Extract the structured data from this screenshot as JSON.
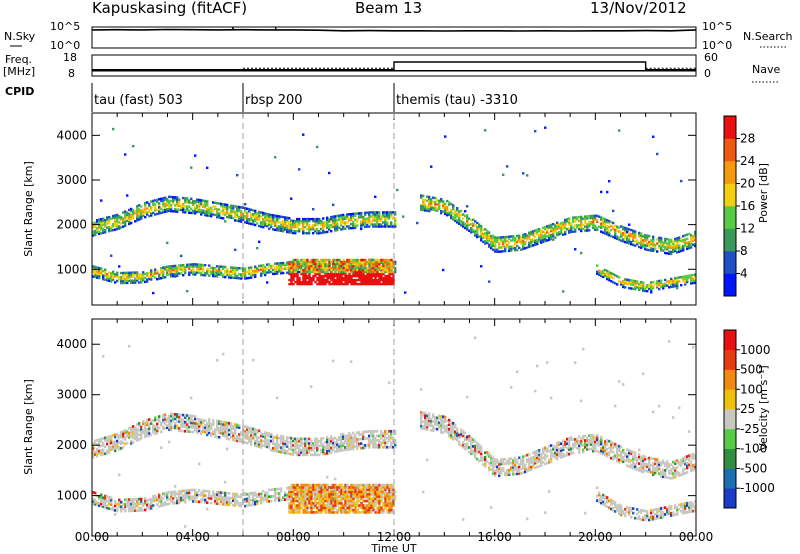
{
  "header": {
    "station": "Kapuskasing (fitACF)",
    "beam": "Beam 13",
    "date": "13/Nov/2012"
  },
  "strip_panels": {
    "nsky_label": "N.Sky",
    "nsky_ticks": [
      "10^5",
      "10^0"
    ],
    "nsearch_label": "N.Search",
    "freq_label_top": "Freq.",
    "freq_label_unit": "[MHz]",
    "freq_ticks": [
      "18",
      "8"
    ],
    "nave_label": "Nave",
    "nave_ticks": [
      "60",
      "0"
    ],
    "cpid_label": "CPID",
    "nsky_trace": [
      4.3,
      4.35,
      4.3,
      4.4,
      4.35,
      4.3,
      4.35,
      4.3,
      4.3,
      4.25,
      4.1,
      4.15,
      4.1,
      4.1,
      4.05,
      4.1,
      4.1,
      4.05,
      4.1,
      4.05,
      4.1,
      4.1,
      4.15,
      4.1,
      4.3
    ],
    "nsky_spikes_hour": [
      5.6,
      7.3
    ],
    "freq_mhz": 10.5,
    "nave_profile": [
      {
        "hour": 0.0,
        "value": 18
      },
      {
        "hour": 6.0,
        "value": 18
      },
      {
        "hour": 12.0,
        "value": 40
      },
      {
        "hour": 22.0,
        "value": 18
      },
      {
        "hour": 24.0,
        "value": 18
      }
    ]
  },
  "cpid_segments": [
    {
      "label": "tau (fast) 503",
      "start_hour": 0.0
    },
    {
      "label": "rbsp 200",
      "start_hour": 6.0
    },
    {
      "label": "themis (tau) -3310",
      "start_hour": 12.0
    }
  ],
  "power_panel": {
    "ylabel": "Slant Range [km]",
    "yticks": [
      1000,
      2000,
      3000,
      4000
    ],
    "ylim": [
      200,
      4500
    ],
    "colorbar_label": "Power [dB]",
    "colorbar_ticks": [
      "4",
      "8",
      "12",
      "16",
      "20",
      "24",
      "28"
    ],
    "colors": [
      "#0014ff",
      "#1f50c8",
      "#3a9a5c",
      "#55cc44",
      "#f0d010",
      "#f59a10",
      "#ef5a10",
      "#e81010"
    ]
  },
  "velocity_panel": {
    "ylabel": "Slant Range [km]",
    "yticks": [
      1000,
      2000,
      3000,
      4000
    ],
    "ylim": [
      200,
      4500
    ],
    "colorbar_label": "Velocity [m s⁻¹]",
    "colorbar_ticks": [
      "1000",
      "500",
      "100",
      "25",
      "-25",
      "-100",
      "-500",
      "-1000"
    ],
    "colors": [
      "#1a3cc8",
      "#1b6eb0",
      "#2f8f3f",
      "#55cc44",
      "#c8c8c0",
      "#f0c010",
      "#f08a10",
      "#e83a10",
      "#e81010"
    ]
  },
  "x_axis": {
    "label": "Time UT",
    "ticks": [
      "00:00",
      "04:00",
      "08:00",
      "12:00",
      "16:00",
      "20:00",
      "00:00"
    ],
    "range_hours": [
      0,
      24
    ]
  },
  "chart_data": {
    "type": "heatmap",
    "title": "Kapuskasing (fitACF) Beam 13 13/Nov/2012",
    "xlabel": "Time UT",
    "ylabel": "Slant Range [km]",
    "xlim_hours": [
      0,
      24
    ],
    "ylim_km": [
      200,
      4500
    ],
    "echo_bands": [
      {
        "name": "upper band",
        "points": [
          [
            0.0,
            1900
          ],
          [
            1.0,
            2050
          ],
          [
            2.0,
            2300
          ],
          [
            3.0,
            2450
          ],
          [
            4.0,
            2400
          ],
          [
            5.0,
            2300
          ],
          [
            6.0,
            2200
          ],
          [
            7.0,
            2050
          ],
          [
            8.0,
            1950
          ],
          [
            9.0,
            1950
          ],
          [
            10.0,
            2050
          ],
          [
            11.0,
            2100
          ],
          [
            12.0,
            2100
          ]
        ],
        "width_km": 320
      },
      {
        "name": "lower band",
        "points": [
          [
            0.0,
            950
          ],
          [
            1.0,
            800
          ],
          [
            2.0,
            820
          ],
          [
            3.0,
            950
          ],
          [
            4.0,
            1000
          ],
          [
            5.0,
            950
          ],
          [
            6.0,
            900
          ],
          [
            7.0,
            1000
          ],
          [
            8.0,
            1050
          ],
          [
            9.0,
            1050
          ],
          [
            10.0,
            1050
          ],
          [
            11.0,
            1100
          ],
          [
            12.0,
            1050
          ]
        ],
        "width_km": 260
      },
      {
        "name": "late upper band",
        "points": [
          [
            13.0,
            2500
          ],
          [
            14.0,
            2400
          ],
          [
            15.0,
            2000
          ],
          [
            16.0,
            1550
          ],
          [
            17.0,
            1600
          ],
          [
            18.0,
            1800
          ],
          [
            19.0,
            2000
          ],
          [
            20.0,
            2050
          ],
          [
            21.0,
            1800
          ],
          [
            22.0,
            1600
          ],
          [
            23.0,
            1500
          ],
          [
            24.0,
            1700
          ]
        ],
        "width_km": 360
      },
      {
        "name": "late lower band",
        "points": [
          [
            20.0,
            1000
          ],
          [
            21.0,
            700
          ],
          [
            22.0,
            600
          ],
          [
            23.0,
            700
          ],
          [
            24.0,
            800
          ]
        ],
        "width_km": 220
      }
    ],
    "strong_echo_patch": {
      "hour_start": 7.8,
      "hour_end": 12.0,
      "km_start": 650,
      "km_end": 1200,
      "power_db": 28
    },
    "power_colorbar_db": [
      4,
      8,
      12,
      16,
      20,
      24,
      28
    ],
    "velocity_colorbar_ms": [
      1000,
      500,
      100,
      25,
      -25,
      -100,
      -500,
      -1000
    ]
  }
}
